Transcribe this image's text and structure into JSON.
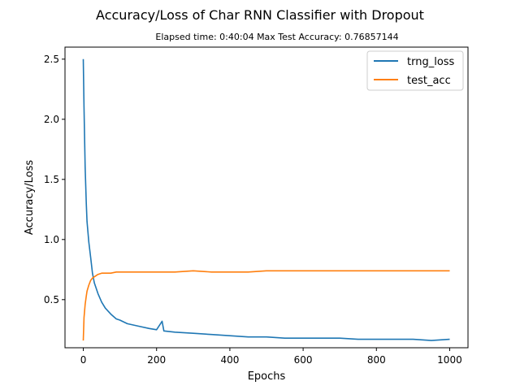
{
  "chart_data": {
    "type": "line",
    "title": "Accuracy/Loss of Char RNN Classifier with Dropout",
    "subtitle": "Elapsed time: 0:40:04   Max Test Accuracy: 0.76857144",
    "xlabel": "Epochs",
    "ylabel": "Accuracy/Loss",
    "xlim": [
      -50,
      1050
    ],
    "ylim": [
      0.1,
      2.6
    ],
    "xticks": [
      0,
      200,
      400,
      600,
      800,
      1000
    ],
    "xtick_labels": [
      "0",
      "200",
      "400",
      "600",
      "800",
      "1000"
    ],
    "yticks": [
      0.5,
      1.0,
      1.5,
      2.0,
      2.5
    ],
    "ytick_labels": [
      "0.5",
      "1.0",
      "1.5",
      "2.0",
      "2.5"
    ],
    "grid": false,
    "legend_position": "top-right",
    "series": [
      {
        "name": "trng_loss",
        "color": "#1f77b4",
        "x": [
          0,
          2,
          5,
          8,
          10,
          15,
          20,
          25,
          30,
          40,
          50,
          60,
          75,
          90,
          100,
          120,
          150,
          180,
          200,
          215,
          220,
          250,
          300,
          350,
          400,
          450,
          500,
          550,
          600,
          650,
          700,
          750,
          800,
          850,
          900,
          950,
          1000
        ],
        "y": [
          2.5,
          2.1,
          1.6,
          1.3,
          1.15,
          0.98,
          0.85,
          0.72,
          0.64,
          0.55,
          0.48,
          0.43,
          0.38,
          0.34,
          0.33,
          0.3,
          0.28,
          0.26,
          0.25,
          0.32,
          0.24,
          0.23,
          0.22,
          0.21,
          0.2,
          0.19,
          0.19,
          0.18,
          0.18,
          0.18,
          0.18,
          0.17,
          0.17,
          0.17,
          0.17,
          0.16,
          0.17
        ]
      },
      {
        "name": "test_acc",
        "color": "#ff7f0e",
        "x": [
          0,
          2,
          5,
          8,
          10,
          15,
          20,
          25,
          30,
          40,
          50,
          60,
          75,
          90,
          100,
          150,
          200,
          250,
          300,
          350,
          400,
          450,
          500,
          550,
          600,
          650,
          700,
          750,
          800,
          850,
          900,
          950,
          1000
        ],
        "y": [
          0.16,
          0.35,
          0.46,
          0.53,
          0.57,
          0.62,
          0.66,
          0.68,
          0.69,
          0.71,
          0.72,
          0.72,
          0.72,
          0.73,
          0.73,
          0.73,
          0.73,
          0.73,
          0.74,
          0.73,
          0.73,
          0.73,
          0.74,
          0.74,
          0.74,
          0.74,
          0.74,
          0.74,
          0.74,
          0.74,
          0.74,
          0.74,
          0.74
        ]
      }
    ]
  }
}
